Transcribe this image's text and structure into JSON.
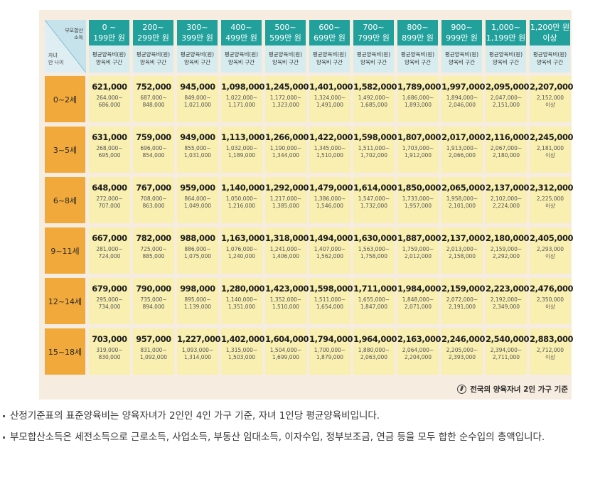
{
  "table": {
    "corner_top": [
      "부모합산",
      "소득"
    ],
    "corner_bottom": [
      "자녀",
      "만 나이"
    ],
    "sub_header": [
      "평균양육비(원)",
      "양육비 구간"
    ],
    "income_brackets": [
      [
        "0 ~",
        "199만 원"
      ],
      [
        "200~",
        "299만 원"
      ],
      [
        "300~",
        "399만 원"
      ],
      [
        "400~",
        "499만 원"
      ],
      [
        "500~",
        "599만 원"
      ],
      [
        "600~",
        "699만 원"
      ],
      [
        "700~",
        "799만 원"
      ],
      [
        "800~",
        "899만 원"
      ],
      [
        "900~",
        "999만 원"
      ],
      [
        "1,000~",
        "1,199만 원"
      ],
      [
        "1,200만 원",
        "이상"
      ]
    ],
    "rows": [
      {
        "age": "0~2세",
        "cells": [
          {
            "avg": "621,000",
            "range": [
              "264,000~",
              "686,000"
            ]
          },
          {
            "avg": "752,000",
            "range": [
              "687,000~",
              "848,000"
            ]
          },
          {
            "avg": "945,000",
            "range": [
              "849,000~",
              "1,021,000"
            ]
          },
          {
            "avg": "1,098,000",
            "range": [
              "1,022,000~",
              "1,171,000"
            ]
          },
          {
            "avg": "1,245,000",
            "range": [
              "1,172,000~",
              "1,323,000"
            ]
          },
          {
            "avg": "1,401,000",
            "range": [
              "1,324,000~",
              "1,491,000"
            ]
          },
          {
            "avg": "1,582,000",
            "range": [
              "1,492,000~",
              "1,685,000"
            ]
          },
          {
            "avg": "1,789,000",
            "range": [
              "1,686,000~",
              "1,893,000"
            ]
          },
          {
            "avg": "1,997,000",
            "range": [
              "1,894,000~",
              "2,046,000"
            ]
          },
          {
            "avg": "2,095,000",
            "range": [
              "2,047,000~",
              "2,151,000"
            ]
          },
          {
            "avg": "2,207,000",
            "range": [
              "2,152,000",
              "이상"
            ]
          }
        ]
      },
      {
        "age": "3~5세",
        "cells": [
          {
            "avg": "631,000",
            "range": [
              "268,000~",
              "695,000"
            ]
          },
          {
            "avg": "759,000",
            "range": [
              "696,000~",
              "854,000"
            ]
          },
          {
            "avg": "949,000",
            "range": [
              "855,000~",
              "1,031,000"
            ]
          },
          {
            "avg": "1,113,000",
            "range": [
              "1,032,000~",
              "1,189,000"
            ]
          },
          {
            "avg": "1,266,000",
            "range": [
              "1,190,000~",
              "1,344,000"
            ]
          },
          {
            "avg": "1,422,000",
            "range": [
              "1,345,000~",
              "1,510,000"
            ]
          },
          {
            "avg": "1,598,000",
            "range": [
              "1,511,000~",
              "1,702,000"
            ]
          },
          {
            "avg": "1,807,000",
            "range": [
              "1,703,000~",
              "1,912,000"
            ]
          },
          {
            "avg": "2,017,000",
            "range": [
              "1,913,000~",
              "2,066,000"
            ]
          },
          {
            "avg": "2,116,000",
            "range": [
              "2,067,000~",
              "2,180,000"
            ]
          },
          {
            "avg": "2,245,000",
            "range": [
              "2,181,000",
              "이상"
            ]
          }
        ]
      },
      {
        "age": "6~8세",
        "cells": [
          {
            "avg": "648,000",
            "range": [
              "272,000~",
              "707,000"
            ]
          },
          {
            "avg": "767,000",
            "range": [
              "708,000~",
              "863,000"
            ]
          },
          {
            "avg": "959,000",
            "range": [
              "864,000~",
              "1,049,000"
            ]
          },
          {
            "avg": "1,140,000",
            "range": [
              "1,050,000~",
              "1,216,000"
            ]
          },
          {
            "avg": "1,292,000",
            "range": [
              "1,217,000~",
              "1,385,000"
            ]
          },
          {
            "avg": "1,479,000",
            "range": [
              "1,386,000~",
              "1,546,000"
            ]
          },
          {
            "avg": "1,614,000",
            "range": [
              "1,547,000~",
              "1,732,000"
            ]
          },
          {
            "avg": "1,850,000",
            "range": [
              "1,733,000~",
              "1,957,000"
            ]
          },
          {
            "avg": "2,065,000",
            "range": [
              "1,958,000~",
              "2,101,000"
            ]
          },
          {
            "avg": "2,137,000",
            "range": [
              "2,102,000~",
              "2,224,000"
            ]
          },
          {
            "avg": "2,312,000",
            "range": [
              "2,225,000",
              "이상"
            ]
          }
        ]
      },
      {
        "age": "9~11세",
        "cells": [
          {
            "avg": "667,000",
            "range": [
              "281,000~",
              "724,000"
            ]
          },
          {
            "avg": "782,000",
            "range": [
              "725,000~",
              "885,000"
            ]
          },
          {
            "avg": "988,000",
            "range": [
              "886,000~",
              "1,075,000"
            ]
          },
          {
            "avg": "1,163,000",
            "range": [
              "1,076,000~",
              "1,240,000"
            ]
          },
          {
            "avg": "1,318,000",
            "range": [
              "1,241,000~",
              "1,406,000"
            ]
          },
          {
            "avg": "1,494,000",
            "range": [
              "1,407,000~",
              "1,562,000"
            ]
          },
          {
            "avg": "1,630,000",
            "range": [
              "1,563,000~",
              "1,758,000"
            ]
          },
          {
            "avg": "1,887,000",
            "range": [
              "1,759,000~",
              "2,012,000"
            ]
          },
          {
            "avg": "2,137,000",
            "range": [
              "2,013,000~",
              "2,158,000"
            ]
          },
          {
            "avg": "2,180,000",
            "range": [
              "2,159,000~",
              "2,292,000"
            ]
          },
          {
            "avg": "2,405,000",
            "range": [
              "2,293,000",
              "이상"
            ]
          }
        ]
      },
      {
        "age": "12~14세",
        "cells": [
          {
            "avg": "679,000",
            "range": [
              "295,000~",
              "734,000"
            ]
          },
          {
            "avg": "790,000",
            "range": [
              "735,000~",
              "894,000"
            ]
          },
          {
            "avg": "998,000",
            "range": [
              "895,000~",
              "1,139,000"
            ]
          },
          {
            "avg": "1,280,000",
            "range": [
              "1,140,000~",
              "1,351,000"
            ]
          },
          {
            "avg": "1,423,000",
            "range": [
              "1,352,000~",
              "1,510,000"
            ]
          },
          {
            "avg": "1,598,000",
            "range": [
              "1,511,000~",
              "1,654,000"
            ]
          },
          {
            "avg": "1,711,000",
            "range": [
              "1,655,000~",
              "1,847,000"
            ]
          },
          {
            "avg": "1,984,000",
            "range": [
              "1,848,000~",
              "2,071,000"
            ]
          },
          {
            "avg": "2,159,000",
            "range": [
              "2,072,000~",
              "2,191,000"
            ]
          },
          {
            "avg": "2,223,000",
            "range": [
              "2,192,000~",
              "2,349,000"
            ]
          },
          {
            "avg": "2,476,000",
            "range": [
              "2,350,000",
              "이상"
            ]
          }
        ]
      },
      {
        "age": "15~18세",
        "cells": [
          {
            "avg": "703,000",
            "range": [
              "319,000~",
              "830,000"
            ]
          },
          {
            "avg": "957,000",
            "range": [
              "831,000~",
              "1,092,000"
            ]
          },
          {
            "avg": "1,227,000",
            "range": [
              "1,093,000~",
              "1,314,000"
            ]
          },
          {
            "avg": "1,402,000",
            "range": [
              "1,315,000~",
              "1,503,000"
            ]
          },
          {
            "avg": "1,604,000",
            "range": [
              "1,504,000~",
              "1,699,000"
            ]
          },
          {
            "avg": "1,794,000",
            "range": [
              "1,700,000~",
              "1,879,000"
            ]
          },
          {
            "avg": "1,964,000",
            "range": [
              "1,880,000~",
              "2,063,000"
            ]
          },
          {
            "avg": "2,163,000",
            "range": [
              "2,064,000~",
              "2,204,000"
            ]
          },
          {
            "avg": "2,246,000",
            "range": [
              "2,205,000~",
              "2,393,000"
            ]
          },
          {
            "avg": "2,540,000",
            "range": [
              "2,394,000~",
              "2,711,000"
            ]
          },
          {
            "avg": "2,883,000",
            "range": [
              "2,712,000",
              "이상"
            ]
          }
        ]
      }
    ],
    "footnote": "전국의 양육자녀 2인 가구 기준"
  },
  "notes": [
    "산정기준표의 표준양육비는 양육자녀가 2인인 4인 가구 기준, 자녀 1인당 평균양육비입니다.",
    "부모합산소득은 세전소득으로 근로소득, 사업소득, 부동산 임대소득, 이자수입, 정부보조금, 연금 등을 모두 합한 순수입의 총액입니다."
  ],
  "colors": {
    "header_teal": "#22a19c",
    "subheader": "#d6ecef",
    "age_orange": "#f0a93a",
    "cell_yellow": "#f8efb0",
    "panel_beige": "#f6ecdf"
  }
}
